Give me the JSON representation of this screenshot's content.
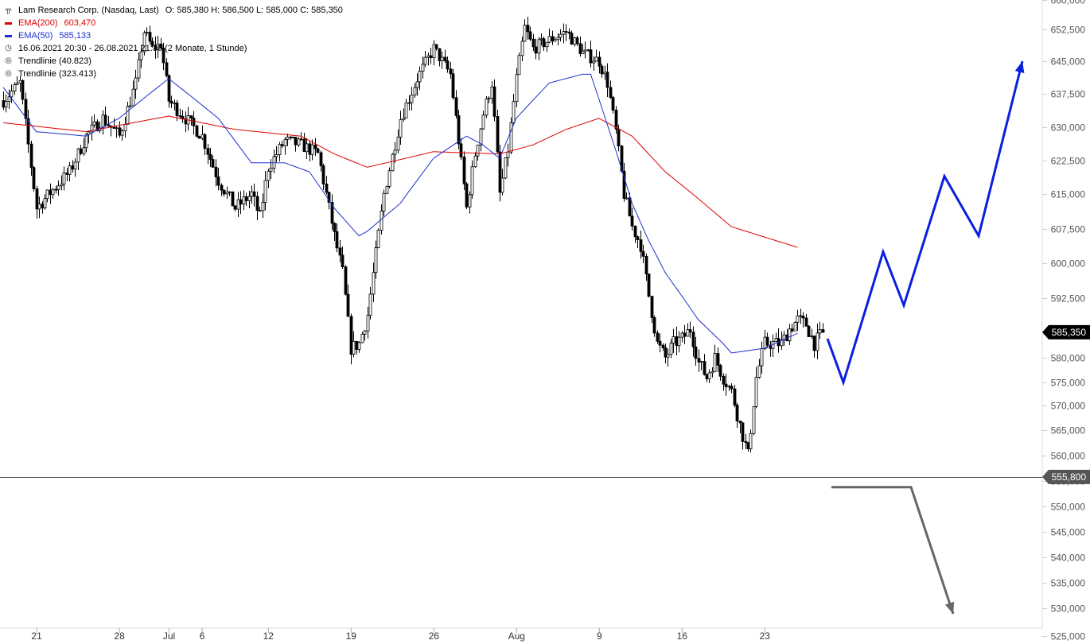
{
  "legend": {
    "instrument": "Lam Research Corp. (Nasdaq, Last)",
    "ohlc": "O: 585,380  H: 586,500  L: 585,000  C: 585,350",
    "ema200_label": "EMA(200)",
    "ema200_value": "603,470",
    "ema50_label": "EMA(50)",
    "ema50_value": "585,133",
    "period": "16.06.2021 20:30 - 26.08.2021 21:30  (2 Monate, 1 Stunde)",
    "trend1": "Trendlinie  (40.823)",
    "trend2": "Trendlinie  (323.413)"
  },
  "colors": {
    "ema200": "#e00000",
    "ema50": "#1e2fd0",
    "candles": "#000000",
    "projection_up": "#0a1fe0",
    "projection_down": "#666666",
    "last_price_tag": "#000000",
    "level_tag": "#555555"
  },
  "chart_data": {
    "type": "candlestick",
    "yaxis_ticks": [
      "525,000",
      "530,000",
      "535,000",
      "540,000",
      "545,000",
      "550,000",
      "555,000",
      "560,000",
      "565,000",
      "570,000",
      "575,000",
      "580,000",
      "585,000",
      "592,500",
      "600,000",
      "607,500",
      "615,000",
      "622,500",
      "630,000",
      "637,500",
      "645,000",
      "652,500",
      "660,000"
    ],
    "yaxis_values": [
      525,
      530,
      535,
      540,
      545,
      550,
      555,
      560,
      565,
      570,
      575,
      580,
      585,
      592.5,
      600,
      607.5,
      615,
      622.5,
      630,
      637.5,
      645,
      652.5,
      660
    ],
    "xaxis_labels": [
      "21",
      "28",
      "Jul",
      "6",
      "12",
      "19",
      "26",
      "Aug",
      "9",
      "16",
      "23"
    ],
    "xaxis_index": [
      4,
      14,
      20,
      24,
      32,
      42,
      52,
      62,
      72,
      82,
      92
    ],
    "last_price": 585.35,
    "last_price_label": "585,350",
    "horizontal_level": 555.8,
    "horizontal_level_label": "555,800",
    "candle_count": 104,
    "close_anchors": [
      [
        0,
        636
      ],
      [
        2,
        640
      ],
      [
        4,
        612
      ],
      [
        6,
        616
      ],
      [
        8,
        620
      ],
      [
        10,
        628
      ],
      [
        12,
        632
      ],
      [
        14,
        628
      ],
      [
        16,
        640
      ],
      [
        17,
        652
      ],
      [
        18,
        648
      ],
      [
        19,
        649
      ],
      [
        20,
        636
      ],
      [
        22,
        632
      ],
      [
        24,
        628
      ],
      [
        26,
        618
      ],
      [
        28,
        612
      ],
      [
        30,
        615
      ],
      [
        31,
        610
      ],
      [
        32,
        621
      ],
      [
        34,
        627
      ],
      [
        36,
        626
      ],
      [
        38,
        624
      ],
      [
        40,
        606
      ],
      [
        41,
        598
      ],
      [
        42,
        582
      ],
      [
        43,
        583
      ],
      [
        44,
        589
      ],
      [
        46,
        615
      ],
      [
        48,
        632
      ],
      [
        50,
        641
      ],
      [
        52,
        648
      ],
      [
        54,
        642
      ],
      [
        55,
        627
      ],
      [
        56,
        612
      ],
      [
        57,
        624
      ],
      [
        58,
        633
      ],
      [
        59,
        640
      ],
      [
        60,
        615
      ],
      [
        61,
        625
      ],
      [
        62,
        641
      ],
      [
        63,
        653
      ],
      [
        64,
        648
      ],
      [
        66,
        650
      ],
      [
        68,
        652
      ],
      [
        70,
        647
      ],
      [
        72,
        645
      ],
      [
        73,
        640
      ],
      [
        74,
        629
      ],
      [
        75,
        615
      ],
      [
        76,
        608
      ],
      [
        77,
        604
      ],
      [
        78,
        593
      ],
      [
        79,
        583
      ],
      [
        80,
        580
      ],
      [
        81,
        583
      ],
      [
        82,
        584
      ],
      [
        83,
        586
      ],
      [
        84,
        579
      ],
      [
        85,
        576
      ],
      [
        86,
        580
      ],
      [
        87,
        576
      ],
      [
        88,
        573
      ],
      [
        89,
        566
      ],
      [
        90,
        560
      ],
      [
        91,
        576
      ],
      [
        92,
        583
      ],
      [
        93,
        583
      ],
      [
        94,
        583
      ],
      [
        95,
        586
      ],
      [
        96,
        588
      ],
      [
        97,
        587
      ],
      [
        98,
        583
      ],
      [
        99,
        585.35
      ]
    ],
    "ema200_anchors": [
      [
        0,
        631
      ],
      [
        10,
        629
      ],
      [
        20,
        632.5
      ],
      [
        28,
        629.5
      ],
      [
        36,
        628
      ],
      [
        40,
        624
      ],
      [
        44,
        621
      ],
      [
        52,
        624.5
      ],
      [
        60,
        624
      ],
      [
        64,
        626
      ],
      [
        68,
        629.5
      ],
      [
        72,
        632
      ],
      [
        76,
        628
      ],
      [
        80,
        620
      ],
      [
        84,
        614
      ],
      [
        88,
        608
      ],
      [
        96,
        603.47
      ]
    ],
    "ema50_anchors": [
      [
        0,
        639
      ],
      [
        4,
        629
      ],
      [
        10,
        628
      ],
      [
        14,
        632
      ],
      [
        20,
        641
      ],
      [
        26,
        632
      ],
      [
        30,
        622
      ],
      [
        34,
        622
      ],
      [
        37,
        620
      ],
      [
        40,
        612
      ],
      [
        43,
        606
      ],
      [
        44,
        607
      ],
      [
        48,
        613
      ],
      [
        52,
        623
      ],
      [
        56,
        628
      ],
      [
        58,
        626
      ],
      [
        60,
        623
      ],
      [
        62,
        632
      ],
      [
        66,
        640
      ],
      [
        70,
        642
      ],
      [
        71,
        642
      ],
      [
        74,
        625
      ],
      [
        76,
        613
      ],
      [
        78,
        605
      ],
      [
        80,
        598
      ],
      [
        84,
        588
      ],
      [
        87,
        583
      ],
      [
        88,
        581
      ],
      [
        92,
        582
      ],
      [
        96,
        585.13
      ]
    ],
    "projection_up": [
      [
        1040,
        584
      ],
      [
        1060,
        575
      ],
      [
        1110,
        602.5
      ],
      [
        1136,
        591
      ],
      [
        1187,
        619
      ],
      [
        1230,
        606
      ],
      [
        1285,
        645
      ]
    ],
    "projection_down": [
      [
        1045,
        553.8
      ],
      [
        1145,
        553.8
      ],
      [
        1198,
        529
      ]
    ],
    "projection_x_unit": "px"
  }
}
